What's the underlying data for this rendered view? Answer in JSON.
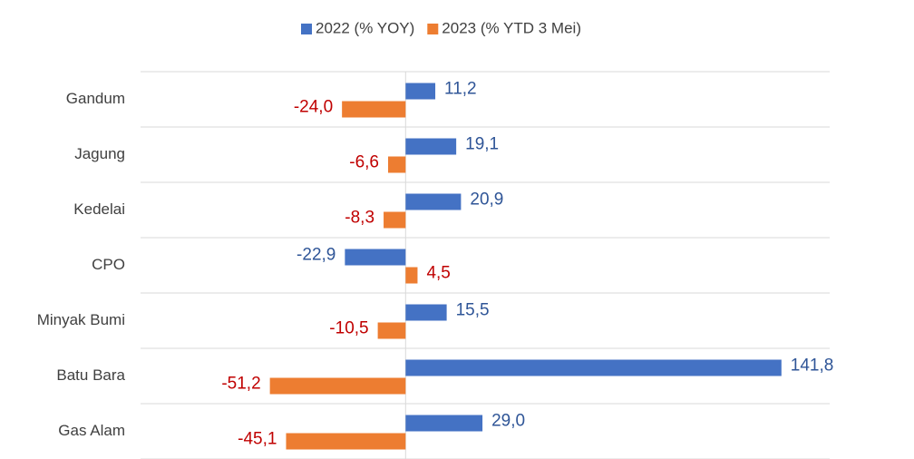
{
  "chart_data": {
    "type": "hbar",
    "categories": [
      "Gandum",
      "Jagung",
      "Kedelai",
      "CPO",
      "Minyak Bumi",
      "Batu Bara",
      "Gas Alam"
    ],
    "series": [
      {
        "name": "2022 (% YOY)",
        "color": "#4472c4",
        "label_color": "#2f5597",
        "values": [
          11.2,
          19.1,
          20.9,
          -22.9,
          15.5,
          141.8,
          29.0
        ],
        "value_labels": [
          "11,2",
          "19,1",
          "20,9",
          "-22,9",
          "15,5",
          "141,8",
          "29,0"
        ]
      },
      {
        "name": "2023 (% YTD 3 Mei)",
        "color": "#ed7d31",
        "label_color": "#c00000",
        "values": [
          -24.0,
          -6.6,
          -8.3,
          4.5,
          -10.5,
          -51.2,
          -45.1
        ],
        "value_labels": [
          "-24,0",
          "-6,6",
          "-8,3",
          "4,5",
          "-10,5",
          "-51,2",
          "-45,1"
        ]
      }
    ],
    "xlim": [
      -100,
      160
    ],
    "legend": "top",
    "grid": true
  }
}
